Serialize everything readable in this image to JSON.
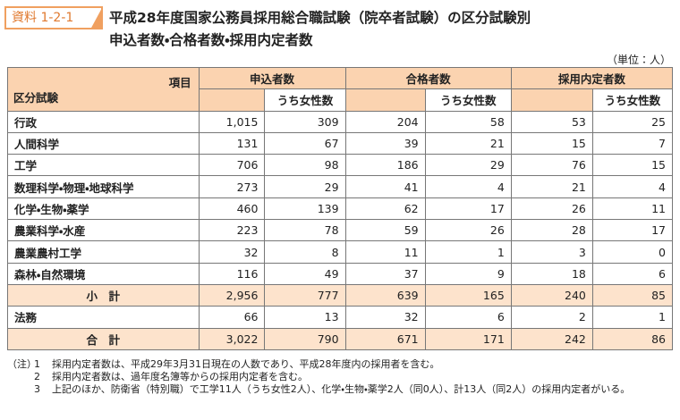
{
  "header": {
    "badge": "資料 1-2-1",
    "title_lines": [
      "平成28年度国家公務員採用総合職試験（院卒者試験）の区分試験別",
      "申込者数・合格者数・採用内定者数"
    ]
  },
  "unit": "（単位：人）",
  "table": {
    "corner_top": "項目",
    "corner_bottom": "区分試験",
    "groups": [
      "申込者数",
      "合格者数",
      "採用内定者数"
    ],
    "sub_header": "うち女性数",
    "rows": [
      [
        "行政",
        "1,015",
        "309",
        "204",
        "58",
        "53",
        "25"
      ],
      [
        "人間科学",
        "131",
        "67",
        "39",
        "21",
        "15",
        "7"
      ],
      [
        "工学",
        "706",
        "98",
        "186",
        "29",
        "76",
        "15"
      ],
      [
        "数理科学・物理・地球科学",
        "273",
        "29",
        "41",
        "4",
        "21",
        "4"
      ],
      [
        "化学・生物・薬学",
        "460",
        "139",
        "62",
        "17",
        "26",
        "11"
      ],
      [
        "農業科学・水産",
        "223",
        "78",
        "59",
        "26",
        "28",
        "17"
      ],
      [
        "農業農村工学",
        "32",
        "8",
        "11",
        "1",
        "3",
        "0"
      ],
      [
        "森林・自然環境",
        "116",
        "49",
        "37",
        "9",
        "18",
        "6"
      ],
      [
        "小　計",
        "2,956",
        "777",
        "639",
        "165",
        "240",
        "85"
      ],
      [
        "法務",
        "66",
        "13",
        "32",
        "6",
        "2",
        "1"
      ],
      [
        "合　計",
        "3,022",
        "790",
        "671",
        "171",
        "242",
        "86"
      ]
    ]
  },
  "notes": {
    "prefix": "（注）",
    "items": [
      {
        "num": "1",
        "text": "採用内定者数は、平成29年3月31日現在の人数であり、平成28年度内の採用者を含む。"
      },
      {
        "num": "2",
        "text": "採用内定者数は、過年度名簿等からの採用内定者を含む。"
      },
      {
        "num": "3",
        "text": "上記のほか、防衛省（特別職）で工学11人（うち女性2人）、化学・生物・薬学2人（同0人）、計13人（同2人）の採用内定者がいる。"
      }
    ]
  }
}
